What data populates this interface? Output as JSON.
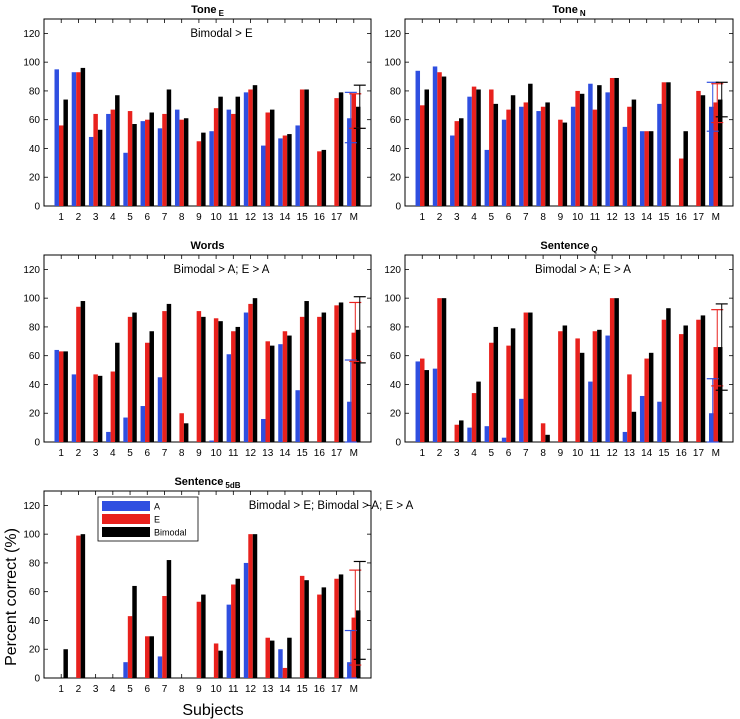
{
  "figure": {
    "ylabel": "Percent correct (%)",
    "xlabel": "Subjects"
  },
  "legend": [
    {
      "label": "A",
      "color": "#2f4fe0"
    },
    {
      "label": "E",
      "color": "#e8211d"
    },
    {
      "label": "Bimodal",
      "color": "#000000"
    }
  ],
  "chart_data": [
    {
      "type": "bar",
      "title": "Tone",
      "title_sub": "E",
      "annotation": "Bimodal > E",
      "ylim": [
        0,
        130
      ],
      "yticks": [
        0,
        20,
        40,
        60,
        80,
        100,
        120
      ],
      "categories": [
        "1",
        "2",
        "3",
        "4",
        "5",
        "6",
        "7",
        "8",
        "9",
        "10",
        "11",
        "12",
        "13",
        "14",
        "15",
        "16",
        "17",
        "M"
      ],
      "series": [
        {
          "name": "A",
          "values": [
            95,
            93,
            48,
            64,
            37,
            59,
            54,
            67,
            0,
            52,
            67,
            79,
            42,
            47,
            56,
            0,
            0,
            61
          ]
        },
        {
          "name": "E",
          "values": [
            56,
            93,
            64,
            67,
            66,
            60,
            64,
            60,
            45,
            68,
            64,
            81,
            65,
            49,
            81,
            38,
            75,
            78
          ]
        },
        {
          "name": "Bimodal",
          "values": [
            74,
            96,
            53,
            77,
            57,
            65,
            81,
            61,
            51,
            76,
            76,
            84,
            67,
            50,
            81,
            39,
            79,
            69
          ]
        }
      ],
      "error_bars": {
        "A": [
          44,
          79
        ],
        "E": [
          54,
          78
        ],
        "Bimodal": [
          54,
          84
        ]
      }
    },
    {
      "type": "bar",
      "title": "Tone",
      "title_sub": "N",
      "annotation": "",
      "ylim": [
        0,
        130
      ],
      "yticks": [
        0,
        20,
        40,
        60,
        80,
        100,
        120
      ],
      "categories": [
        "1",
        "2",
        "3",
        "4",
        "5",
        "6",
        "7",
        "8",
        "9",
        "10",
        "11",
        "12",
        "13",
        "14",
        "15",
        "16",
        "17",
        "M"
      ],
      "series": [
        {
          "name": "A",
          "values": [
            94,
            97,
            49,
            76,
            39,
            60,
            69,
            66,
            0,
            69,
            85,
            79,
            55,
            52,
            71,
            0,
            0,
            69
          ]
        },
        {
          "name": "E",
          "values": [
            70,
            93,
            59,
            83,
            81,
            67,
            72,
            69,
            60,
            80,
            67,
            89,
            69,
            52,
            86,
            33,
            80,
            72
          ]
        },
        {
          "name": "Bimodal",
          "values": [
            81,
            90,
            61,
            81,
            71,
            77,
            85,
            72,
            58,
            78,
            84,
            89,
            74,
            52,
            86,
            52,
            77,
            74
          ]
        }
      ],
      "error_bars": {
        "A": [
          52,
          86
        ],
        "E": [
          58,
          85
        ],
        "Bimodal": [
          62,
          86
        ]
      }
    },
    {
      "type": "bar",
      "title": "Words",
      "title_sub": "",
      "annotation": "Bimodal > A; E > A",
      "ylim": [
        0,
        130
      ],
      "yticks": [
        0,
        20,
        40,
        60,
        80,
        100,
        120
      ],
      "categories": [
        "1",
        "2",
        "3",
        "4",
        "5",
        "6",
        "7",
        "8",
        "9",
        "10",
        "11",
        "12",
        "13",
        "14",
        "15",
        "16",
        "17",
        "M"
      ],
      "series": [
        {
          "name": "A",
          "values": [
            64,
            47,
            0,
            7,
            17,
            25,
            45,
            0,
            0,
            1,
            61,
            90,
            16,
            68,
            36,
            0,
            0,
            28
          ]
        },
        {
          "name": "E",
          "values": [
            63,
            94,
            47,
            49,
            87,
            69,
            91,
            20,
            91,
            86,
            77,
            96,
            70,
            77,
            87,
            87,
            95,
            76
          ]
        },
        {
          "name": "Bimodal",
          "values": [
            63,
            98,
            46,
            69,
            90,
            77,
            96,
            13,
            87,
            84,
            80,
            100,
            67,
            74,
            98,
            90,
            97,
            78
          ]
        }
      ],
      "error_bars": {
        "A": [
          0,
          57
        ],
        "E": [
          56,
          97
        ],
        "Bimodal": [
          55,
          101
        ]
      }
    },
    {
      "type": "bar",
      "title": "Sentence",
      "title_sub": "Q",
      "annotation": "Bimodal > A; E > A",
      "ylim": [
        0,
        130
      ],
      "yticks": [
        0,
        20,
        40,
        60,
        80,
        100,
        120
      ],
      "categories": [
        "1",
        "2",
        "3",
        "4",
        "5",
        "6",
        "7",
        "8",
        "9",
        "10",
        "11",
        "12",
        "13",
        "14",
        "15",
        "16",
        "17",
        "M"
      ],
      "series": [
        {
          "name": "A",
          "values": [
            56,
            51,
            0,
            10,
            11,
            3,
            30,
            0,
            0,
            0,
            42,
            74,
            7,
            32,
            28,
            0,
            0,
            20
          ]
        },
        {
          "name": "E",
          "values": [
            58,
            100,
            12,
            34,
            69,
            67,
            90,
            13,
            77,
            72,
            77,
            100,
            47,
            58,
            85,
            75,
            85,
            66
          ]
        },
        {
          "name": "Bimodal",
          "values": [
            50,
            100,
            15,
            42,
            80,
            79,
            90,
            5,
            81,
            62,
            78,
            100,
            21,
            62,
            93,
            81,
            88,
            66
          ]
        }
      ],
      "error_bars": {
        "A": [
          0,
          44
        ],
        "E": [
          39,
          92
        ],
        "Bimodal": [
          36,
          96
        ]
      }
    },
    {
      "type": "bar",
      "title": "Sentence",
      "title_sub": "5dB",
      "annotation": "Bimodal > E; Bimodal > A; E > A",
      "ylim": [
        0,
        130
      ],
      "yticks": [
        0,
        20,
        40,
        60,
        80,
        100,
        120
      ],
      "categories": [
        "1",
        "2",
        "3",
        "4",
        "5",
        "6",
        "7",
        "8",
        "9",
        "10",
        "11",
        "12",
        "13",
        "14",
        "15",
        "16",
        "17",
        "M"
      ],
      "series": [
        {
          "name": "A",
          "values": [
            0,
            0,
            0,
            0,
            11,
            0,
            15,
            0,
            0,
            0,
            51,
            80,
            0,
            20,
            0,
            0,
            0,
            11
          ]
        },
        {
          "name": "E",
          "values": [
            0,
            99,
            0,
            0,
            43,
            29,
            57,
            0,
            53,
            24,
            65,
            100,
            28,
            7,
            71,
            58,
            69,
            42
          ]
        },
        {
          "name": "Bimodal",
          "values": [
            20,
            100,
            0,
            0,
            64,
            29,
            82,
            0,
            58,
            19,
            69,
            100,
            26,
            28,
            68,
            63,
            72,
            47
          ]
        }
      ],
      "error_bars": {
        "A": [
          0,
          33
        ],
        "E": [
          9,
          75
        ],
        "Bimodal": [
          13,
          81
        ]
      }
    }
  ]
}
